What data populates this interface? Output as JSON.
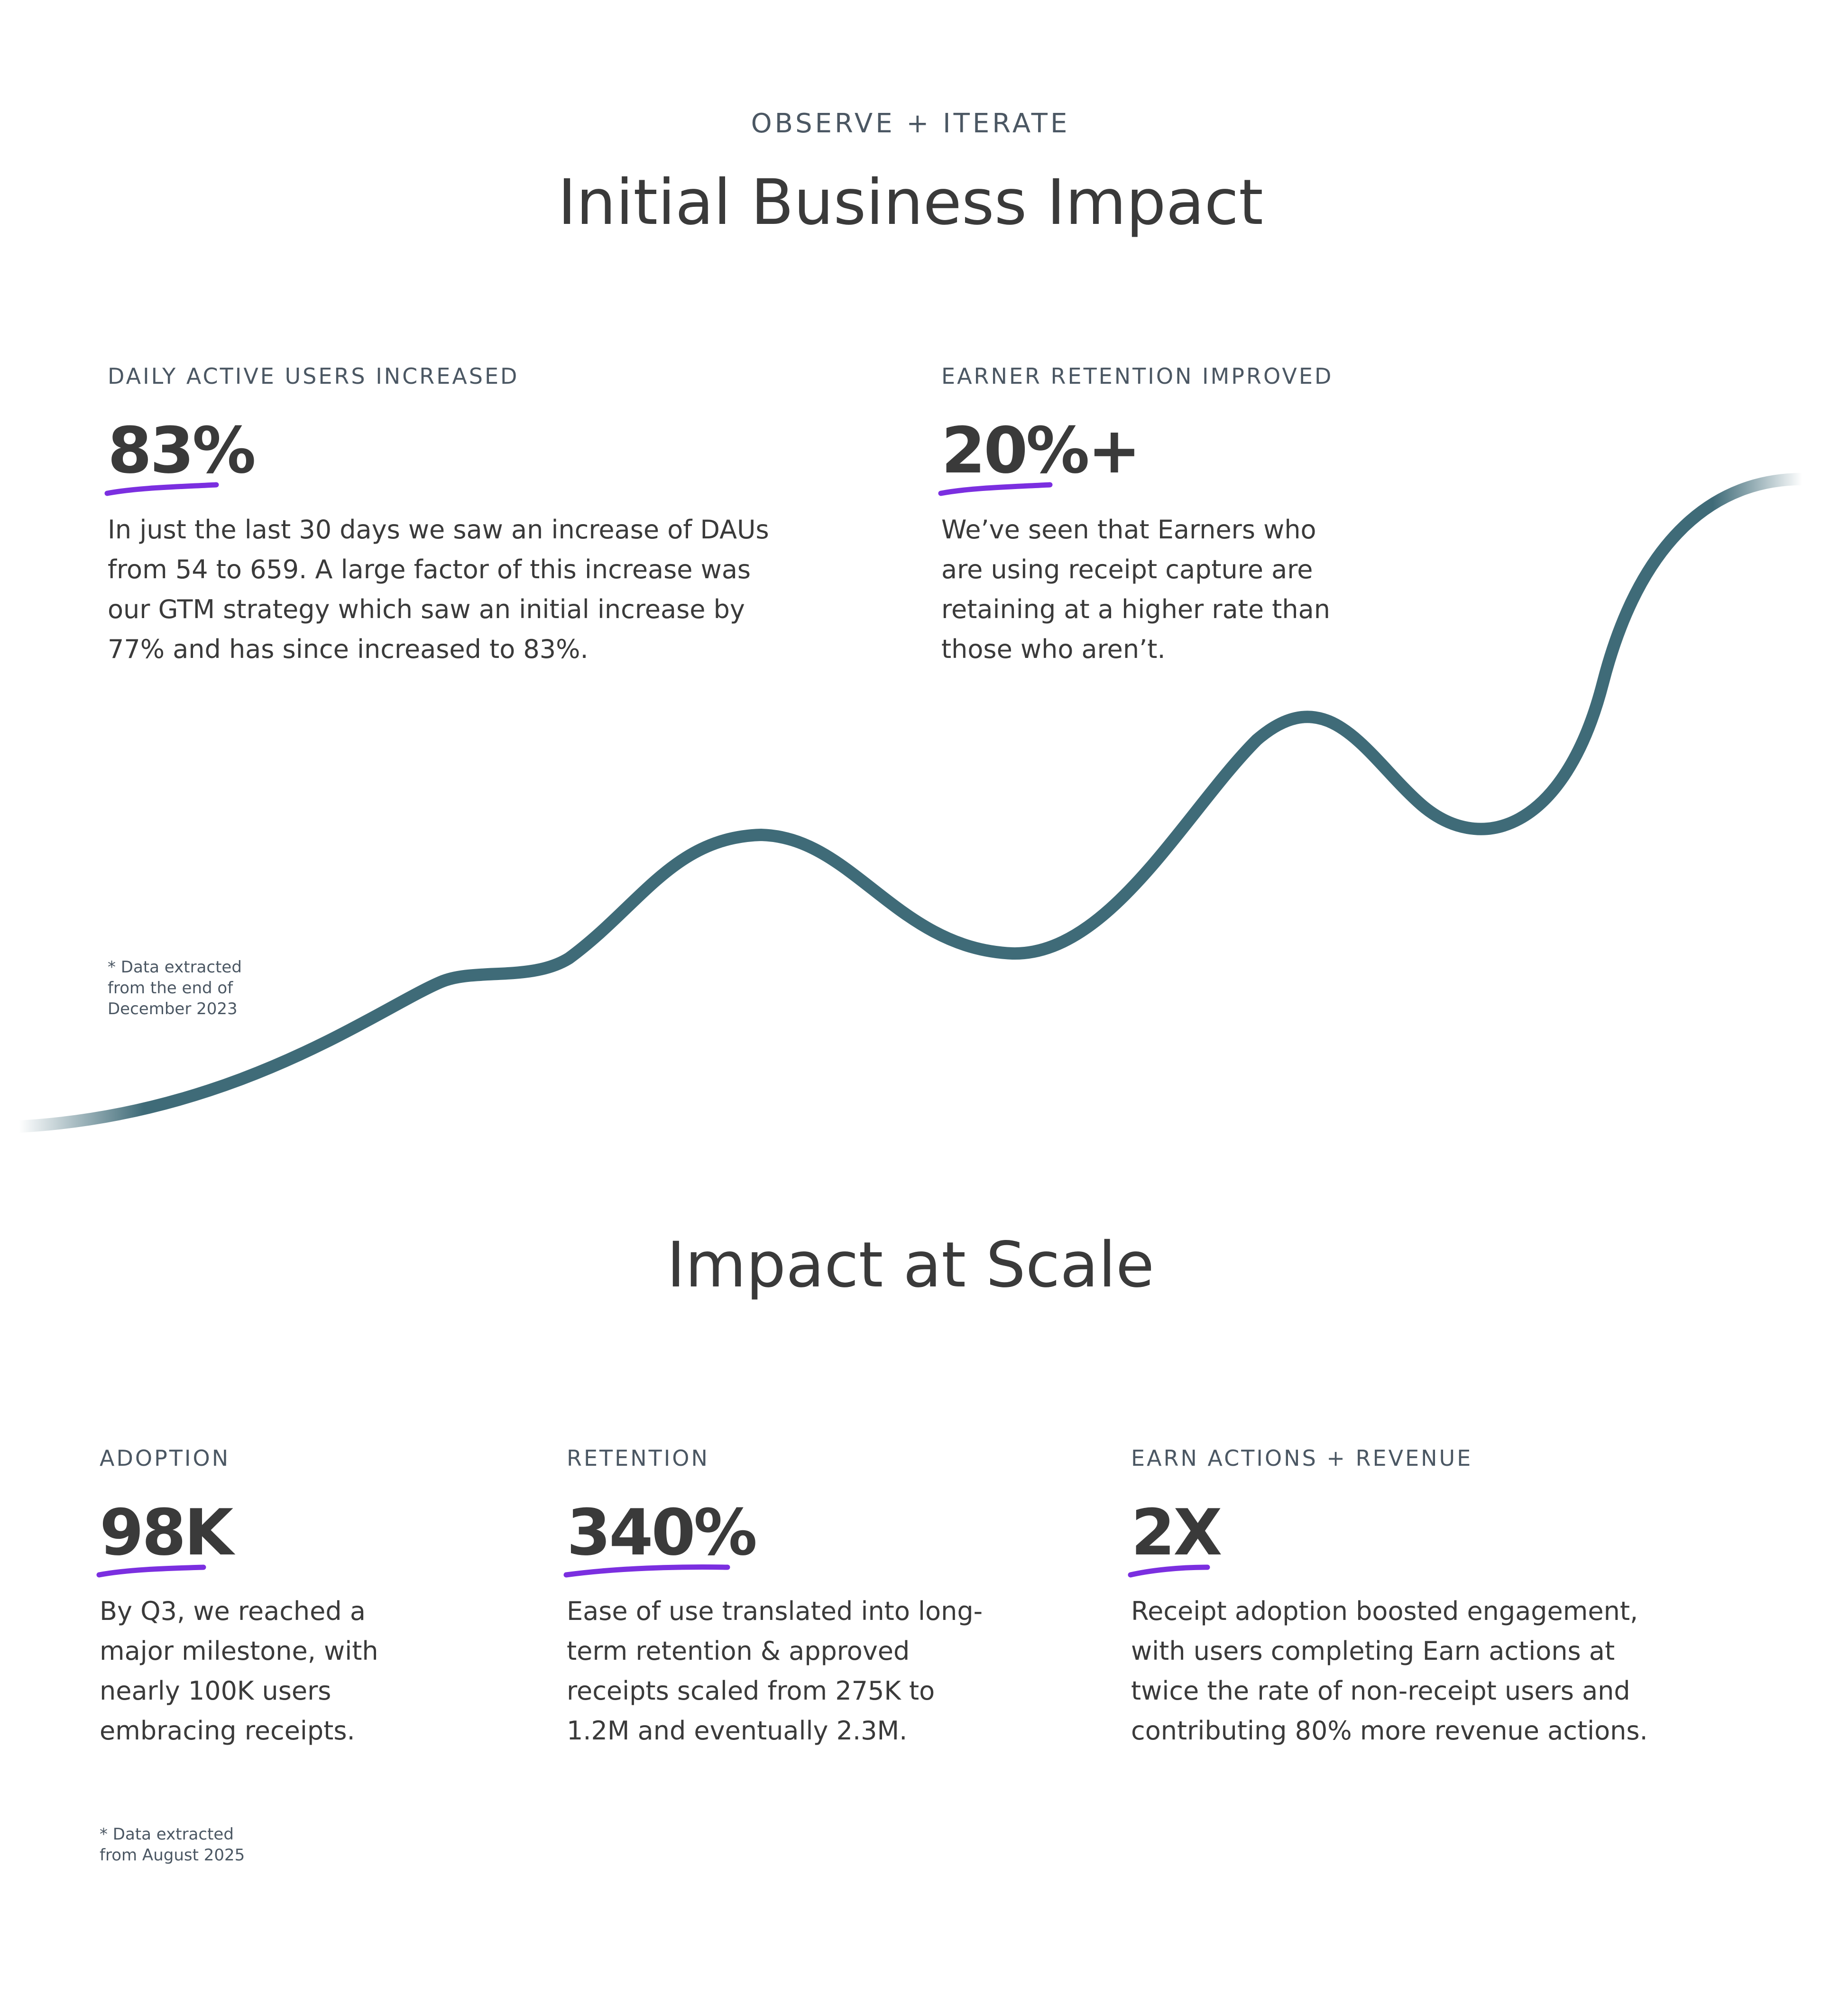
{
  "header": {
    "eyebrow": "OBSERVE + ITERATE",
    "title": "Initial Business Impact"
  },
  "initial_stats": [
    {
      "label": "DAILY ACTIVE USERS INCREASED",
      "value": "83%",
      "description": "In just the last 30 days we saw an increase of DAUs from 54 to 659. A large factor of this increase was our GTM strategy which saw an initial increase by 77% and has since increased to 83%."
    },
    {
      "label": "EARNER RETENTION IMPROVED",
      "value": "20%+",
      "description": "We’ve seen that Earners who are using receipt capture are retaining at a higher rate than those who aren’t."
    }
  ],
  "initial_note": "* Data extracted from the end of December 2023",
  "scale": {
    "title": "Impact at Scale",
    "stats": [
      {
        "label": "ADOPTION",
        "value": "98K",
        "description": "By Q3, we reached a major milestone, with nearly 100K users embracing receipts."
      },
      {
        "label": "RETENTION",
        "value": "340%",
        "description": "Ease of use translated into long-term retention & approved receipts scaled from 275K to 1.2M and eventually 2.3M."
      },
      {
        "label": "EARN ACTIONS + REVENUE",
        "value": "2X",
        "description": "Receipt adoption boosted engagement, with users completing Earn actions at twice the rate of non-receipt users and contributing 80% more revenue actions."
      }
    ],
    "note": "* Data extracted from August 2025"
  },
  "colors": {
    "curve": "#3f6b78",
    "underline": "#7b2fe0",
    "text": "#3a3a3a",
    "label": "#4b5763"
  }
}
